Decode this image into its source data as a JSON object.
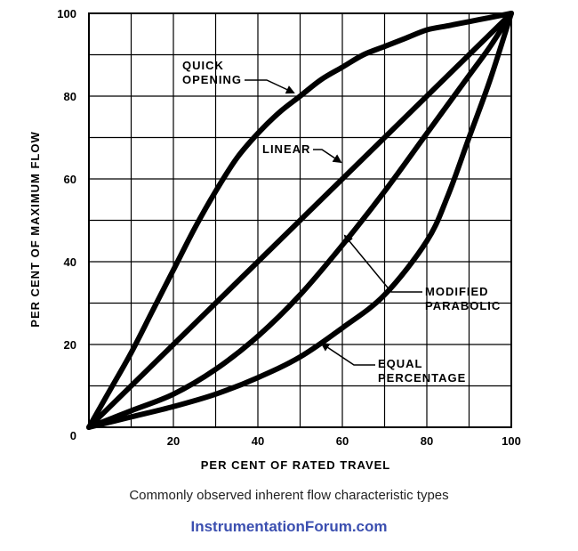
{
  "chart_data": {
    "type": "line",
    "title": "",
    "xlabel": "PER CENT OF RATED TRAVEL",
    "ylabel": "PER CENT OF MAXIMUM FLOW",
    "xlim": [
      0,
      100
    ],
    "ylim": [
      0,
      100
    ],
    "grid": true,
    "x_ticks": [
      20,
      40,
      60,
      80,
      100
    ],
    "y_ticks": [
      0,
      20,
      40,
      60,
      80,
      100
    ],
    "x_tick_labels": [
      "20",
      "40",
      "60",
      "80",
      "100"
    ],
    "y_tick_labels": [
      "0",
      "20",
      "40",
      "60",
      "80",
      "100"
    ],
    "series": [
      {
        "name": "QUICK OPENING",
        "label_lines": [
          "QUICK",
          "OPENING"
        ],
        "x": [
          0,
          5,
          10,
          15,
          20,
          25,
          30,
          35,
          40,
          45,
          50,
          55,
          60,
          65,
          70,
          75,
          80,
          85,
          90,
          95,
          100
        ],
        "y": [
          0,
          9,
          18,
          28,
          38,
          48,
          57,
          65,
          71,
          76,
          80,
          84,
          87,
          90,
          92,
          94,
          96,
          97,
          98,
          99,
          100
        ]
      },
      {
        "name": "LINEAR",
        "label_lines": [
          "LINEAR"
        ],
        "x": [
          0,
          100
        ],
        "y": [
          0,
          100
        ]
      },
      {
        "name": "MODIFIED PARABOLIC",
        "label_lines": [
          "MODIFIED",
          "PARABOLIC"
        ],
        "x": [
          0,
          10,
          20,
          30,
          40,
          50,
          60,
          70,
          80,
          90,
          95,
          100
        ],
        "y": [
          0,
          4,
          8,
          14,
          22,
          32,
          44,
          57,
          71,
          85,
          92,
          100
        ]
      },
      {
        "name": "EQUAL PERCENTAGE",
        "label_lines": [
          "EQUAL",
          "PERCENTAGE"
        ],
        "x": [
          0,
          10,
          20,
          30,
          40,
          50,
          60,
          70,
          80,
          85,
          90,
          95,
          100
        ],
        "y": [
          0,
          2.5,
          5,
          8,
          12,
          17,
          24,
          32,
          45,
          56,
          70,
          84,
          100
        ]
      }
    ]
  },
  "caption": "Commonly observed inherent flow characteristic types",
  "watermark": "InstrumentationForum.com"
}
